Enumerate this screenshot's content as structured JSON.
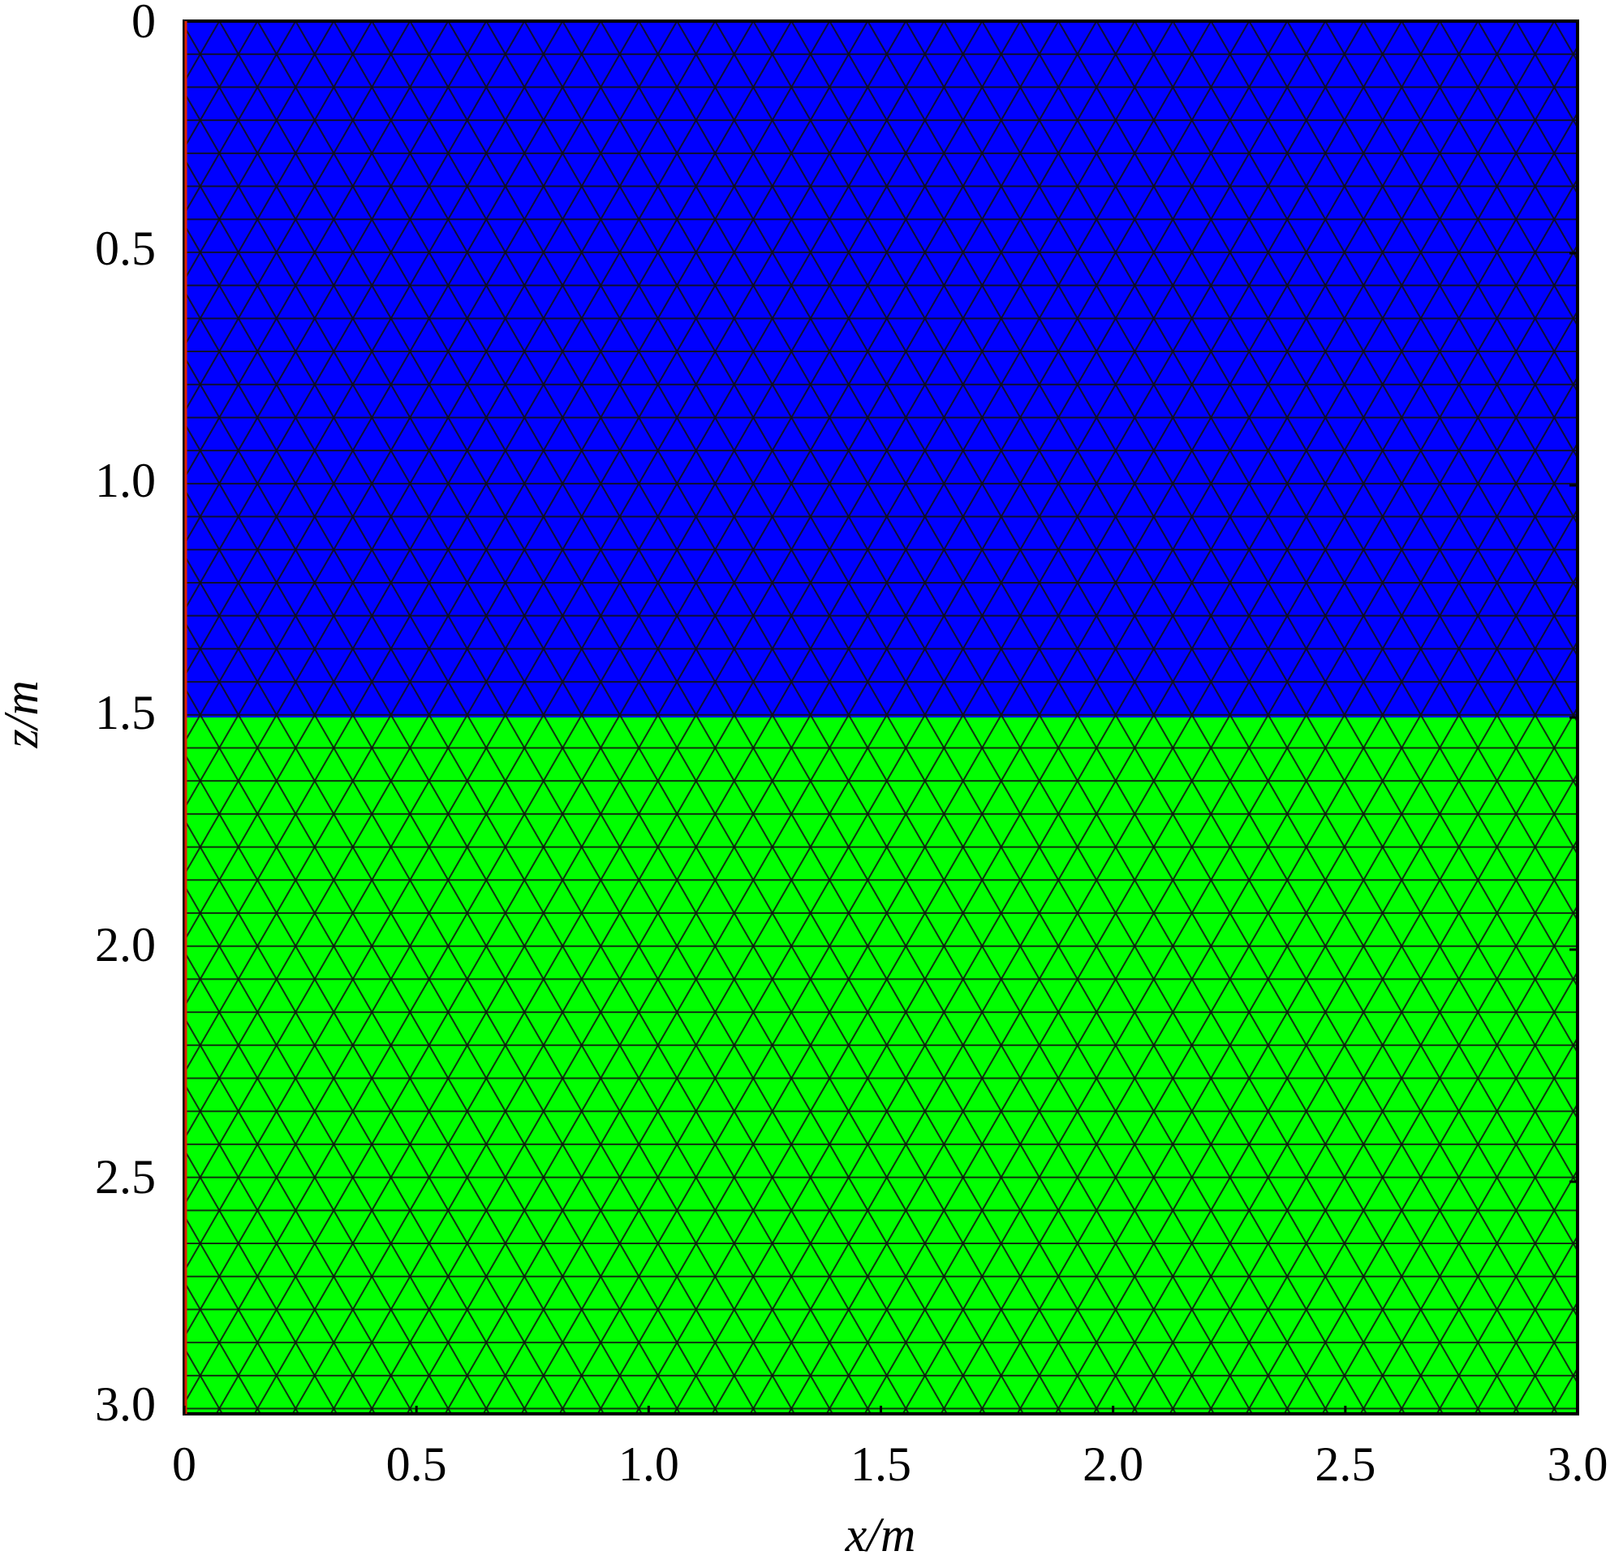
{
  "chart_data": {
    "type": "mesh",
    "x_label": "x/m",
    "y_label": "z/m",
    "xlim": [
      0,
      3
    ],
    "ylim": [
      3,
      0
    ],
    "xticks": [
      0,
      0.5,
      {
        "value": 1,
        "label": "1.0"
      },
      1.5,
      {
        "value": 2,
        "label": "2.0"
      },
      2.5,
      {
        "value": 3,
        "label": "3.0"
      }
    ],
    "yticks": [
      0,
      0.5,
      {
        "value": 1,
        "label": "1.0"
      },
      1.5,
      {
        "value": 2,
        "label": "2.0"
      },
      2.5,
      {
        "value": 3,
        "label": "3.0"
      }
    ],
    "regions": [
      {
        "color": "#0000ff",
        "zlim": [
          0,
          1.5
        ]
      },
      {
        "color": "#00ff00",
        "zlim": [
          1.5,
          3
        ]
      }
    ]
  }
}
